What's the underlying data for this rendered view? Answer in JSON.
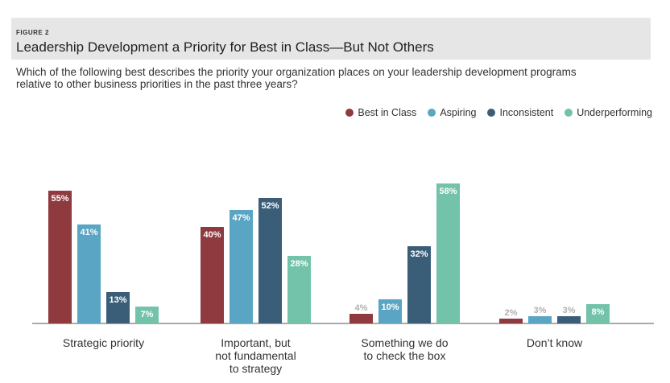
{
  "figure_label": "FIGURE 2",
  "title": "Leadership Development a Priority for Best in Class—But Not Others",
  "question": "Which of the following best describes the priority your organization places on your leadership development programs relative to other business priorities in the past three years?",
  "chart_data": {
    "type": "bar",
    "categories": [
      [
        "Strategic priority"
      ],
      [
        "Important, but",
        "not fundamental",
        "to strategy"
      ],
      [
        "Something we do",
        "to check the box"
      ],
      [
        "Don’t know"
      ]
    ],
    "series": [
      {
        "name": "Best in Class",
        "color": "#8f3a3f",
        "values": [
          55,
          40,
          4,
          2
        ]
      },
      {
        "name": "Aspiring",
        "color": "#5aa5c3",
        "values": [
          41,
          47,
          10,
          3
        ]
      },
      {
        "name": "Inconsistent",
        "color": "#3a5e78",
        "values": [
          13,
          52,
          32,
          3
        ]
      },
      {
        "name": "Underperforming",
        "color": "#72c3a9",
        "values": [
          7,
          28,
          58,
          8
        ]
      }
    ],
    "value_suffix": "%",
    "ylim": [
      0,
      60
    ],
    "legend_position": "top-right",
    "grid": false
  }
}
